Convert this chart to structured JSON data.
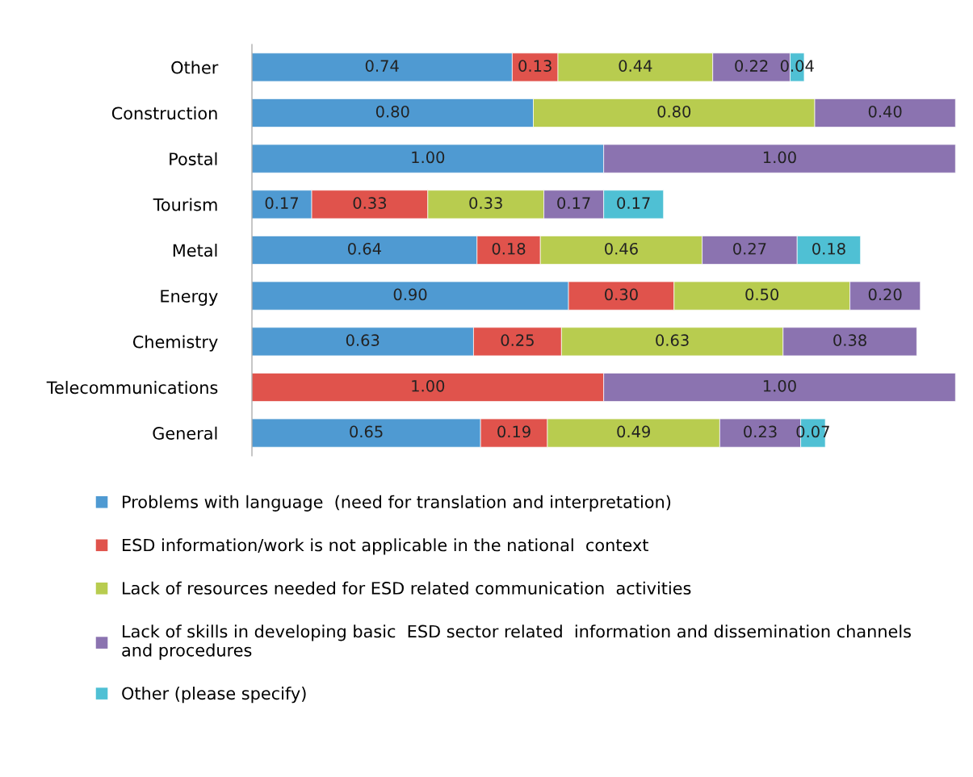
{
  "chart_data": {
    "type": "bar",
    "orientation": "horizontal",
    "stacked": true,
    "legend": "bottom",
    "categories": [
      "Other",
      "Construction",
      "Postal",
      "Tourism",
      "Metal",
      "Energy",
      "Chemistry",
      "Telecommunications",
      "General"
    ],
    "series": [
      {
        "name": "Problems with language  (need for translation and interpretation)",
        "color": "#4f9ad2",
        "values": [
          0.74,
          0.8,
          1.0,
          0.17,
          0.64,
          0.9,
          0.63,
          null,
          0.65
        ],
        "value_labels": [
          "0.74",
          "0.80",
          "1.00",
          "0.17",
          "0.64",
          "0.90",
          "0.63",
          null,
          "0.65"
        ]
      },
      {
        "name": "ESD information/work is not applicable in the national  context",
        "color": "#e0534c",
        "values": [
          0.13,
          null,
          null,
          0.33,
          0.18,
          0.3,
          0.25,
          1.0,
          0.19
        ],
        "value_labels": [
          "0.13",
          null,
          null,
          "0.33",
          "0.18",
          "0.30",
          "0.25",
          "1.00",
          "0.19"
        ]
      },
      {
        "name": "Lack of resources needed for ESD related communication  activities",
        "color": "#b8cc4f",
        "values": [
          0.44,
          0.8,
          null,
          0.33,
          0.46,
          0.5,
          0.63,
          null,
          0.49
        ],
        "value_labels": [
          "0.44",
          "0.80",
          null,
          "0.33",
          "0.46",
          "0.50",
          "0.63",
          null,
          "0.49"
        ]
      },
      {
        "name": "Lack of skills in developing basic  ESD sector related  information and dissemination channels and procedures",
        "color": "#8b73b0",
        "values": [
          0.22,
          0.4,
          1.0,
          0.17,
          0.27,
          0.2,
          0.38,
          1.0,
          0.23
        ],
        "value_labels": [
          "0.22",
          "0.40",
          "1.00",
          "0.17",
          "0.27",
          "0.20",
          "0.38",
          "1.00",
          "0.23"
        ]
      },
      {
        "name": "Other (please specify)",
        "color": "#4fc0d4",
        "values": [
          0.04,
          null,
          null,
          0.17,
          0.18,
          null,
          null,
          null,
          0.07
        ],
        "value_labels": [
          "0.04",
          null,
          null,
          "0.17",
          "0.18",
          null,
          null,
          null,
          "0.07"
        ]
      }
    ]
  }
}
